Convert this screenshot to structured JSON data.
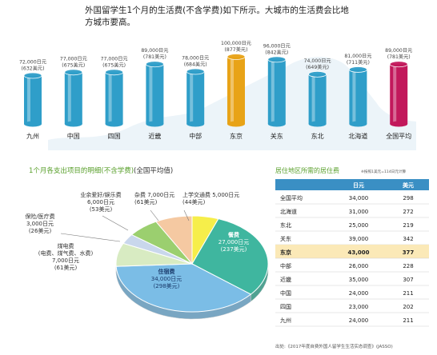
{
  "intro_text": "外国留学生1个月的生活费(不含学费)如下所示。大城市的生活费会比地方城市要高。",
  "chart_data": [
    {
      "type": "bar",
      "categories": [
        "九州",
        "中国",
        "四国",
        "近畿",
        "中部",
        "东京",
        "关东",
        "东北",
        "北海道",
        "全国平均"
      ],
      "values": [
        72000,
        77000,
        77000,
        89000,
        78000,
        100000,
        96000,
        74000,
        81000,
        89000
      ],
      "usd": [
        632,
        675,
        675,
        781,
        684,
        877,
        842,
        649,
        711,
        781
      ],
      "labels_yen": [
        "72,000日元",
        "77,000日元",
        "77,000日元",
        "89,000日元",
        "78,000日元",
        "100,000日元",
        "96,000日元",
        "74,000日元",
        "81,000日元",
        "89,000日元"
      ],
      "labels_usd": [
        "(632美元)",
        "(675美元)",
        "(675美元)",
        "(781美元)",
        "(684美元)",
        "(877美元)",
        "(842美元)",
        "(649美元)",
        "(711美元)",
        "(781美元)"
      ],
      "highlight": {
        "东京": "#e8a317",
        "全国平均": "#c2185b"
      },
      "bar_color": "#2f9ec9"
    },
    {
      "type": "pie",
      "title": "1个月各支出项目的明细(不含学费)",
      "subtitle": "(全国平均值)",
      "slices": [
        {
          "name": "上学交通费",
          "yen": 5000,
          "usd": 44,
          "yen_label": "5,000日元",
          "usd_label": "(44美元)",
          "color": "#f6ee4a"
        },
        {
          "name": "餐费",
          "yen": 27000,
          "usd": 237,
          "yen_label": "27,000日元",
          "usd_label": "(237美元)",
          "color": "#3fb69f"
        },
        {
          "name": "住宿费",
          "yen": 34000,
          "usd": 298,
          "yen_label": "34,000日元",
          "usd_label": "(298美元)",
          "color": "#7bbde6"
        },
        {
          "name": "煤电费",
          "note": "(电费、煤气费、水费)",
          "yen": 7000,
          "usd": 61,
          "yen_label": "7,000日元",
          "usd_label": "(61美元)",
          "color": "#d8ebc2"
        },
        {
          "name": "保险/医疗费",
          "yen": 3000,
          "usd": 26,
          "yen_label": "3,000日元",
          "usd_label": "(26美元)",
          "color": "#c9d7ec"
        },
        {
          "name": "业余爱好/娱乐费",
          "yen": 6000,
          "usd": 53,
          "yen_label": "6,000日元",
          "usd_label": "(53美元)",
          "color": "#9bcf6f"
        },
        {
          "name": "杂费",
          "yen": 7000,
          "usd": 61,
          "yen_label": "7,000日元",
          "usd_label": "(61美元)",
          "color": "#f5c9a2"
        }
      ]
    },
    {
      "type": "table",
      "title": "居住地区所需的居住费",
      "note": "※按照1美元=114日元计算",
      "columns": [
        "",
        "日元",
        "美元"
      ],
      "rows": [
        [
          "全国平均",
          "34,000",
          "298"
        ],
        [
          "北海道",
          "31,000",
          "272"
        ],
        [
          "东北",
          "25,000",
          "219"
        ],
        [
          "关东",
          "39,000",
          "342"
        ],
        [
          "东京",
          "43,000",
          "377"
        ],
        [
          "中部",
          "26,000",
          "228"
        ],
        [
          "近畿",
          "35,000",
          "307"
        ],
        [
          "中国",
          "24,000",
          "211"
        ],
        [
          "四国",
          "23,000",
          "202"
        ],
        [
          "九州",
          "24,000",
          "211"
        ]
      ],
      "highlight_row": "东京"
    }
  ],
  "source": "出处:《2017年度自费外国人留学生生活实态调查》(JASSO)",
  "colors": {
    "accent_green": "#5aa02c",
    "table_header": "#3a8fc4",
    "highlight_row": "#fbe9b7"
  }
}
